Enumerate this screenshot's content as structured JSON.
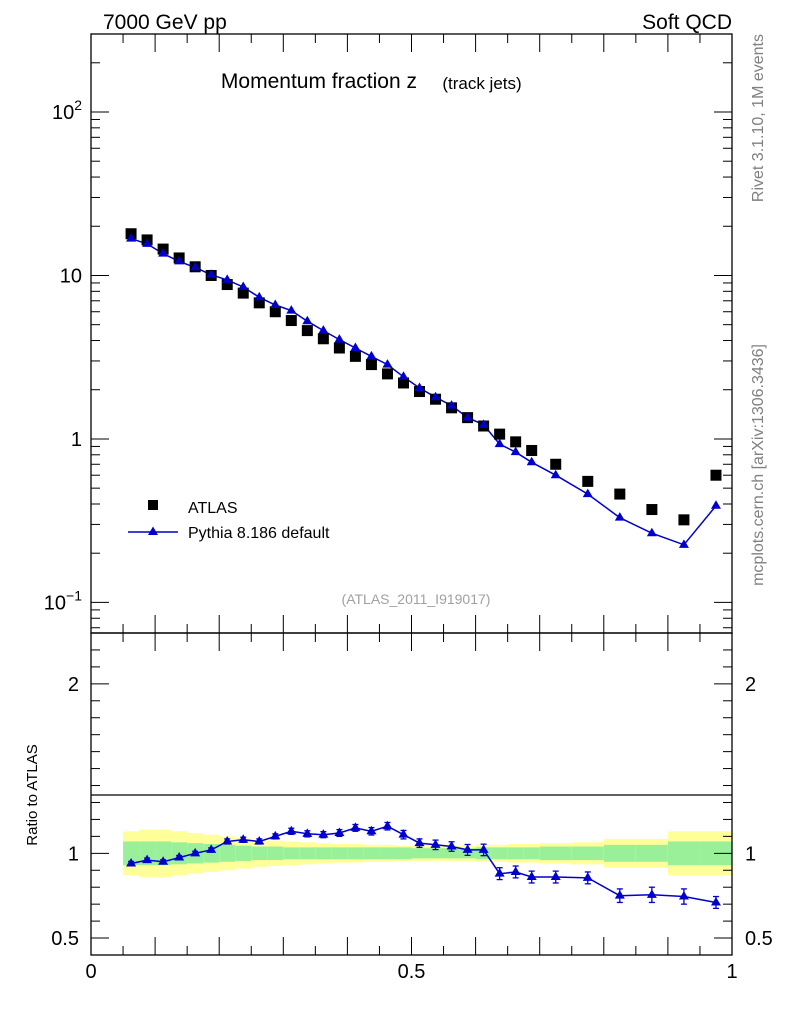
{
  "header": {
    "left": "7000 GeV pp",
    "right": "Soft QCD"
  },
  "side": {
    "rivet": "Rivet 3.1.10,  1M events",
    "mcplots": "mcplots.cern.ch [arXiv:1306.3436]"
  },
  "chart_data": [
    {
      "panel": "main",
      "type": "scatter",
      "title_main": "Momentum fraction z",
      "title_sub": "(track jets)",
      "analysis_label": "(ATLAS_2011_I919017)",
      "yscale": "log",
      "xlim": [
        0,
        1
      ],
      "ylim": [
        0.065,
        300
      ],
      "yticklabels": [
        {
          "value": 100,
          "base": "10",
          "exp": "2"
        },
        {
          "value": 10,
          "base": "10",
          "exp": ""
        },
        {
          "value": 1,
          "base": "1",
          "exp": ""
        },
        {
          "value": 0.1,
          "base": "10",
          "exp": "−1"
        }
      ],
      "legend_position": "lower-left",
      "series": [
        {
          "name": "ATLAS",
          "style": "squares",
          "color": "#000000",
          "x": [
            0.0625,
            0.0875,
            0.1125,
            0.1375,
            0.1625,
            0.1875,
            0.2125,
            0.2375,
            0.2625,
            0.2875,
            0.3125,
            0.3375,
            0.3625,
            0.3875,
            0.4125,
            0.4375,
            0.4625,
            0.4875,
            0.5125,
            0.5375,
            0.5625,
            0.5875,
            0.6125,
            0.6375,
            0.6625,
            0.6875,
            0.725,
            0.775,
            0.825,
            0.875,
            0.925,
            0.975
          ],
          "y": [
            18.0,
            16.5,
            14.5,
            12.8,
            11.3,
            10.0,
            8.8,
            7.8,
            6.8,
            6.0,
            5.3,
            4.6,
            4.1,
            3.6,
            3.2,
            2.85,
            2.5,
            2.2,
            1.95,
            1.75,
            1.55,
            1.35,
            1.2,
            1.07,
            0.96,
            0.85,
            0.7,
            0.55,
            0.46,
            0.37,
            0.32,
            0.6
          ]
        },
        {
          "name": "Pythia 8.186 default",
          "style": "line-triangles",
          "color": "#0000cc",
          "x": [
            0.0625,
            0.0875,
            0.1125,
            0.1375,
            0.1625,
            0.1875,
            0.2125,
            0.2375,
            0.2625,
            0.2875,
            0.3125,
            0.3375,
            0.3625,
            0.3875,
            0.4125,
            0.4375,
            0.4625,
            0.4875,
            0.5125,
            0.5375,
            0.5625,
            0.5875,
            0.6125,
            0.6375,
            0.6625,
            0.6875,
            0.725,
            0.775,
            0.825,
            0.875,
            0.925,
            0.975
          ],
          "y": [
            16.8,
            15.6,
            13.6,
            12.2,
            11.2,
            10.1,
            9.4,
            8.5,
            7.35,
            6.6,
            6.1,
            5.25,
            4.6,
            4.05,
            3.6,
            3.2,
            2.85,
            2.4,
            2.05,
            1.8,
            1.6,
            1.35,
            1.22,
            0.93,
            0.83,
            0.72,
            0.6,
            0.46,
            0.33,
            0.265,
            0.225,
            0.39
          ]
        }
      ]
    },
    {
      "panel": "ratio",
      "type": "scatter",
      "ylabel": "Ratio to ATLAS",
      "xlim": [
        0,
        1
      ],
      "ylim": [
        0.4,
        2.3
      ],
      "xticks": [
        0,
        0.5,
        1
      ],
      "xticklabels": [
        "0",
        "0.5",
        "1"
      ],
      "yticks": [
        0.5,
        1,
        2
      ],
      "yticklabels": [
        "0.5",
        "1",
        "2"
      ],
      "bands": {
        "x_edges": [
          0.05,
          0.075,
          0.1,
          0.125,
          0.15,
          0.175,
          0.2,
          0.225,
          0.25,
          0.275,
          0.3,
          0.325,
          0.35,
          0.375,
          0.4,
          0.425,
          0.45,
          0.475,
          0.5,
          0.525,
          0.55,
          0.575,
          0.6,
          0.625,
          0.65,
          0.675,
          0.7,
          0.75,
          0.8,
          0.85,
          0.9,
          0.95,
          1.0
        ],
        "inner_half": [
          0.07,
          0.07,
          0.07,
          0.065,
          0.06,
          0.055,
          0.05,
          0.045,
          0.04,
          0.04,
          0.035,
          0.035,
          0.035,
          0.035,
          0.035,
          0.035,
          0.035,
          0.035,
          0.03,
          0.03,
          0.03,
          0.03,
          0.035,
          0.035,
          0.035,
          0.035,
          0.04,
          0.04,
          0.05,
          0.05,
          0.07,
          0.07
        ],
        "outer_half": [
          0.13,
          0.14,
          0.14,
          0.13,
          0.12,
          0.11,
          0.1,
          0.09,
          0.08,
          0.075,
          0.07,
          0.065,
          0.06,
          0.055,
          0.055,
          0.05,
          0.05,
          0.045,
          0.045,
          0.045,
          0.045,
          0.045,
          0.05,
          0.05,
          0.055,
          0.055,
          0.06,
          0.065,
          0.085,
          0.085,
          0.13,
          0.13
        ],
        "inner_color": "#99f099",
        "outer_color": "#ffff99"
      },
      "series": [
        {
          "name": "Pythia 8.186 default",
          "color": "#0000cc",
          "x": [
            0.0625,
            0.0875,
            0.1125,
            0.1375,
            0.1625,
            0.1875,
            0.2125,
            0.2375,
            0.2625,
            0.2875,
            0.3125,
            0.3375,
            0.3625,
            0.3875,
            0.4125,
            0.4375,
            0.4625,
            0.4875,
            0.5125,
            0.5375,
            0.5625,
            0.5875,
            0.6125,
            0.6375,
            0.6625,
            0.6875,
            0.725,
            0.775,
            0.825,
            0.875,
            0.925,
            0.975
          ],
          "y": [
            0.94,
            0.96,
            0.95,
            0.975,
            1.0,
            1.02,
            1.07,
            1.08,
            1.07,
            1.1,
            1.13,
            1.115,
            1.11,
            1.12,
            1.15,
            1.13,
            1.16,
            1.11,
            1.06,
            1.05,
            1.04,
            1.02,
            1.02,
            0.88,
            0.89,
            0.86,
            0.86,
            0.855,
            0.75,
            0.755,
            0.745,
            0.71
          ],
          "yerr": [
            0.012,
            0.012,
            0.012,
            0.012,
            0.012,
            0.012,
            0.015,
            0.015,
            0.015,
            0.015,
            0.018,
            0.018,
            0.018,
            0.02,
            0.02,
            0.022,
            0.022,
            0.025,
            0.025,
            0.028,
            0.028,
            0.032,
            0.034,
            0.035,
            0.035,
            0.035,
            0.035,
            0.035,
            0.04,
            0.045,
            0.045,
            0.035
          ]
        }
      ]
    }
  ]
}
